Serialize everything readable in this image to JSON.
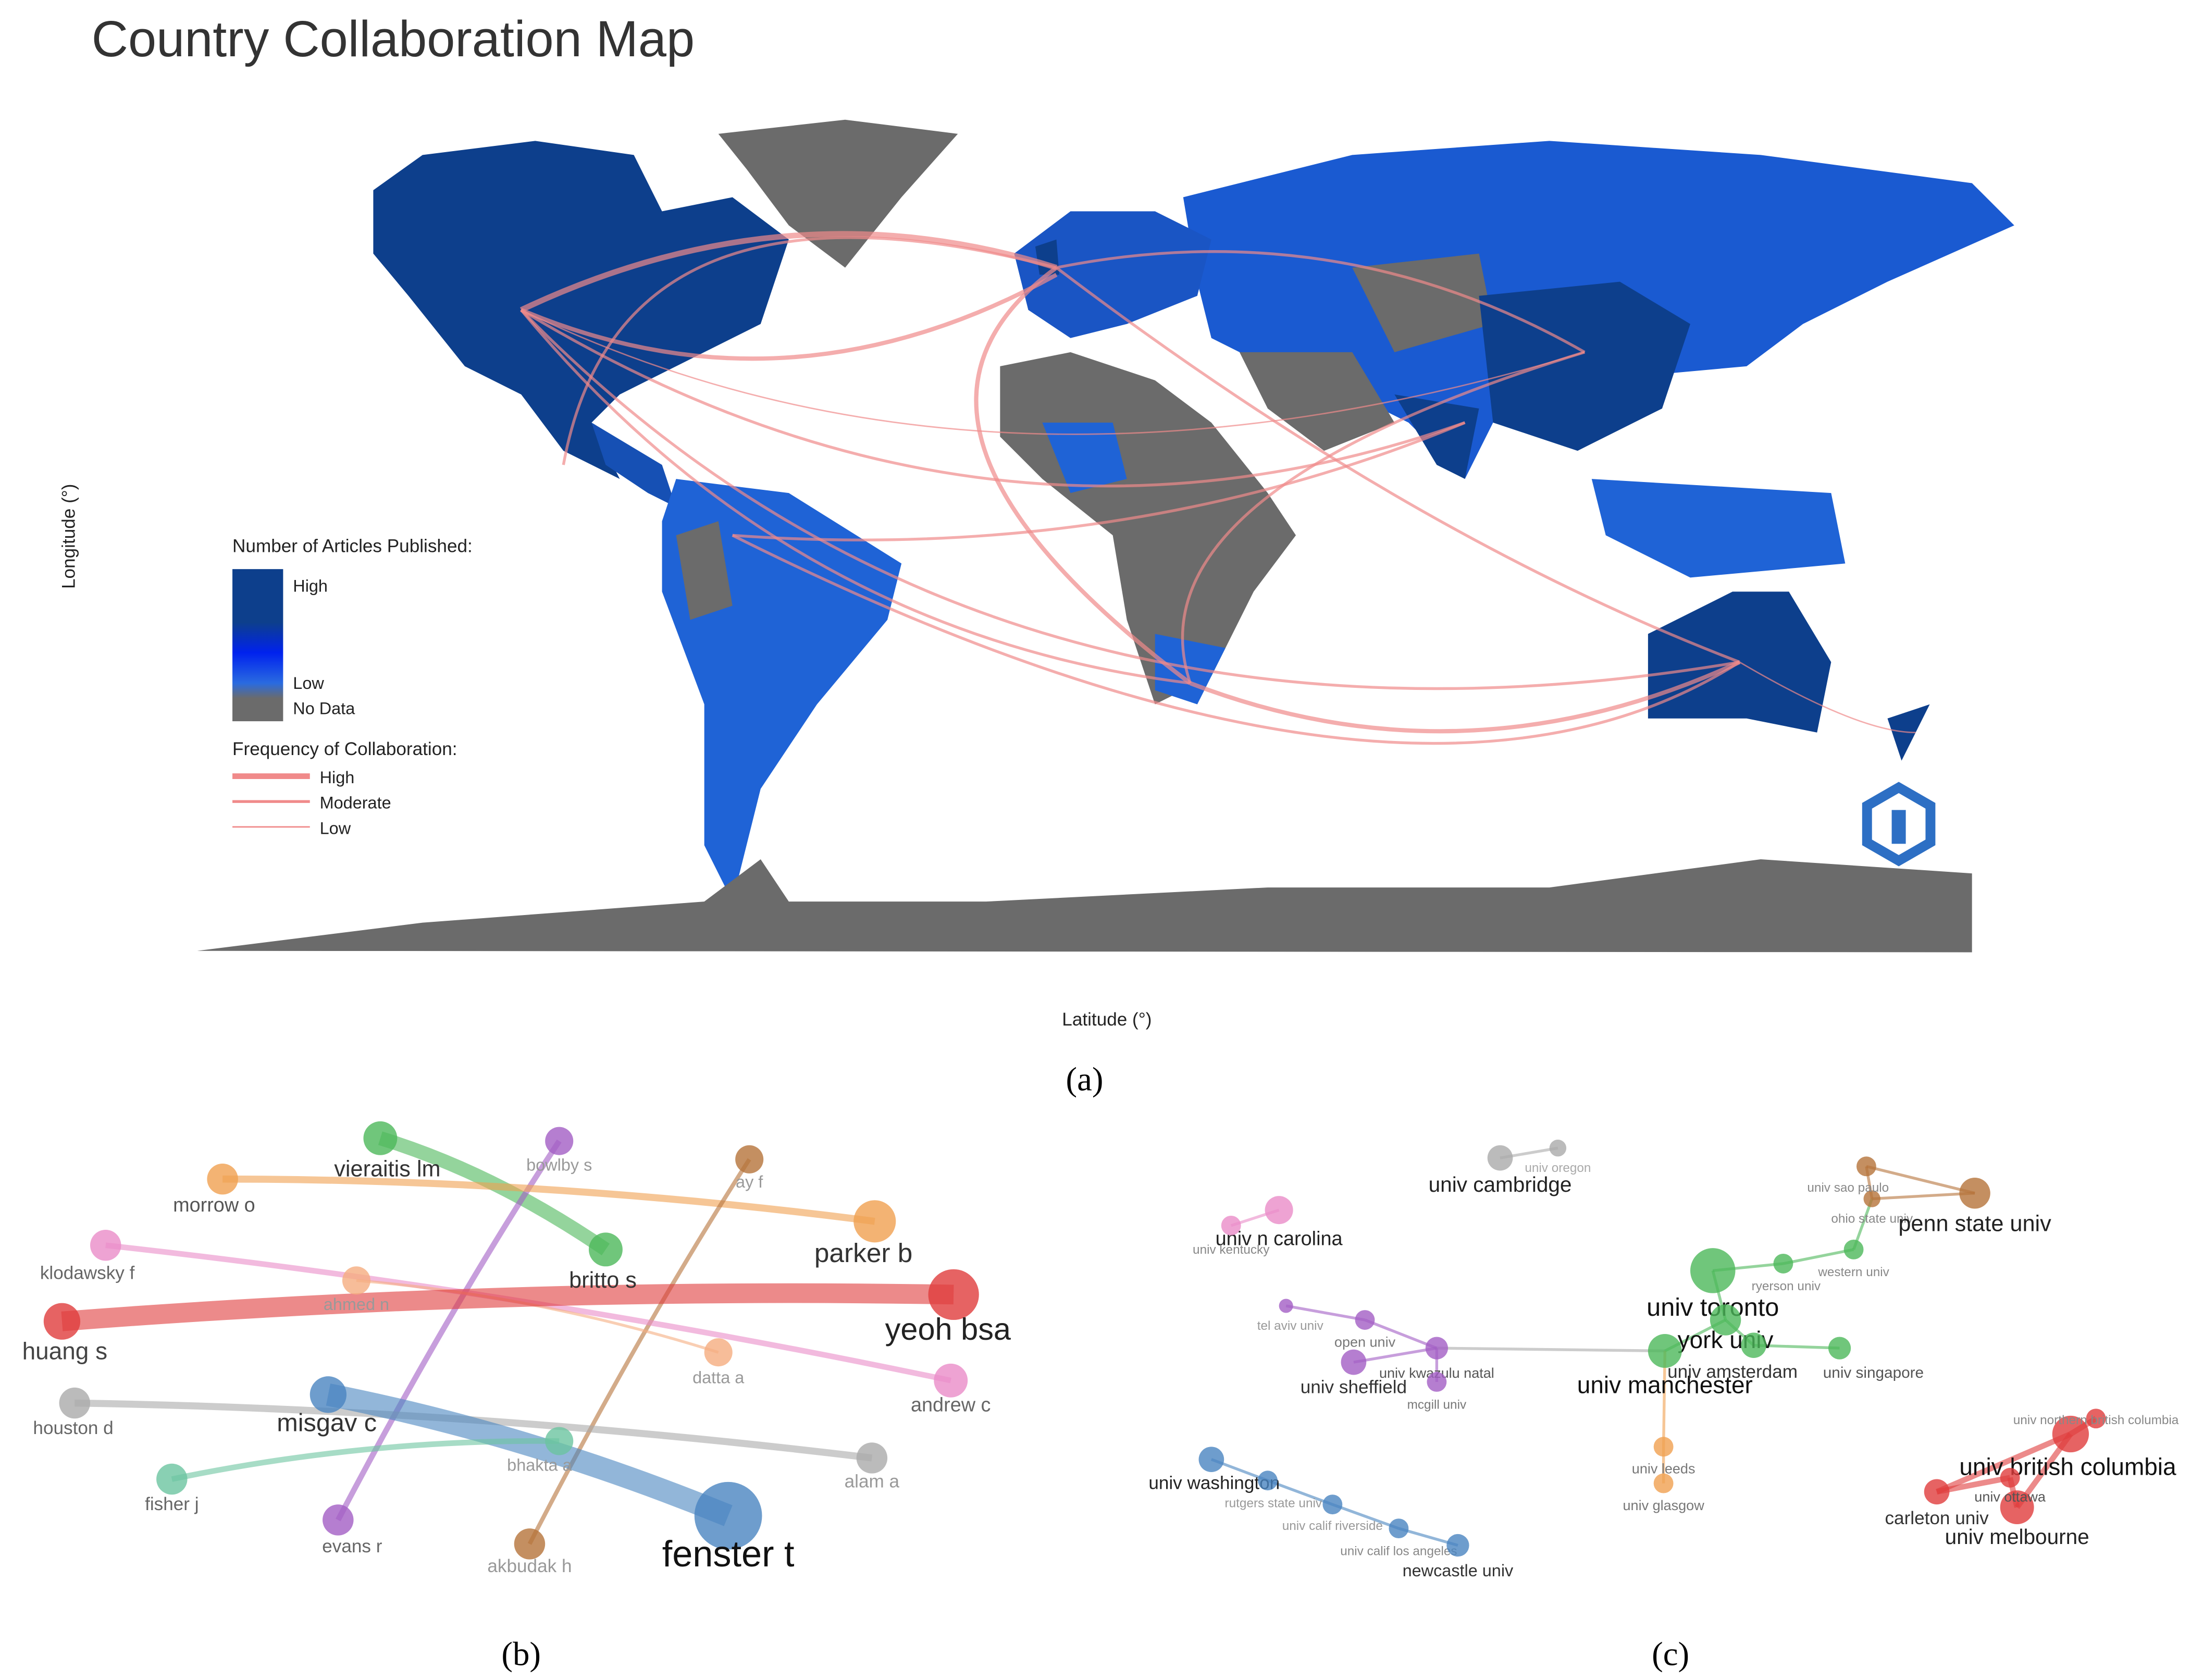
{
  "map": {
    "title": "Country Collaboration Map",
    "y_label": "Longitude (°)",
    "x_label": "Latitude (°)",
    "articles_legend": {
      "title": "Number of Articles Published:",
      "high": "High",
      "low": "Low",
      "no_data": "No Data"
    },
    "collab_legend": {
      "title": "Frequency of Collaboration:",
      "high": "High",
      "moderate": "Moderate",
      "low": "Low"
    },
    "caption": "(a)"
  },
  "author_network": {
    "caption": "(b)",
    "nodes": [
      "vieraitis lm",
      "britto s",
      "bowlby s",
      "evans r",
      "morrow o",
      "parker b",
      "ay f",
      "akbudak h",
      "klodawsky f",
      "andrew c",
      "ahmed n",
      "datta a",
      "huang s",
      "yeoh bsa",
      "houston d",
      "alam a",
      "misgav c",
      "fenster t",
      "fisher j",
      "bhakta a"
    ]
  },
  "institution_network": {
    "caption": "(c)",
    "nodes": [
      "univ cambridge",
      "univ oregon",
      "univ n carolina",
      "univ kentucky",
      "tel aviv univ",
      "open univ",
      "univ kwazulu natal",
      "univ sheffield",
      "mcgill univ",
      "univ toronto",
      "york univ",
      "univ manchester",
      "univ amsterdam",
      "univ singapore",
      "ryerson univ",
      "western univ",
      "ohio state univ",
      "univ sao paulo",
      "penn state univ",
      "univ leeds",
      "univ glasgow",
      "univ washington",
      "rutgers state univ",
      "univ calif riverside",
      "univ calif los angeles",
      "newcastle univ",
      "univ british columbia",
      "univ melbourne",
      "carleton univ",
      "univ ottawa",
      "univ northern british columbia"
    ]
  }
}
